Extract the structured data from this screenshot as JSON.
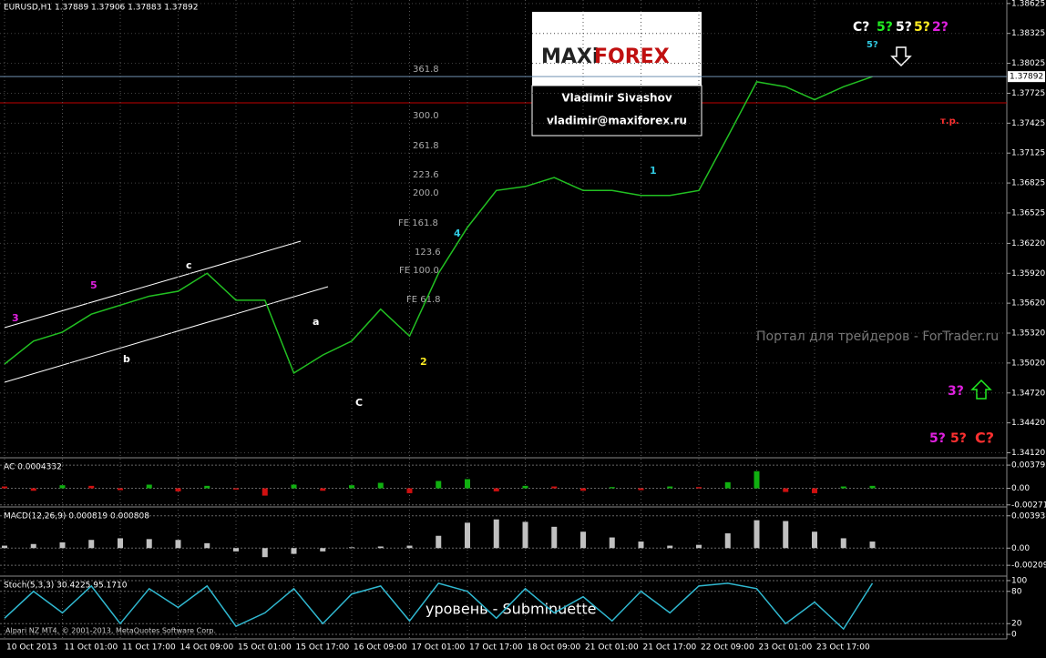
{
  "chart_data": [
    {
      "type": "line",
      "title": "EURUSD,H1  1.37889 1.37906 1.37883 1.37892",
      "color": "#22c022",
      "categories": [
        "10 Oct 2013",
        null,
        "11 Oct 01:00",
        null,
        "11 Oct 17:00",
        null,
        "14 Oct 09:00",
        null,
        "15 Oct 01:00",
        null,
        "15 Oct 17:00",
        null,
        "16 Oct 09:00",
        null,
        "17 Oct 01:00",
        null,
        "17 Oct 17:00",
        null,
        "18 Oct 09:00",
        null,
        "21 Oct 01:00",
        null,
        "21 Oct 17:00",
        null,
        "22 Oct 09:00",
        null,
        "23 Oct 01:00",
        null,
        "23 Oct 17:00",
        null,
        null
      ],
      "values": [
        1.3501,
        1.3524,
        1.3533,
        1.3551,
        1.356,
        1.3569,
        1.3574,
        1.3592,
        1.3565,
        1.3565,
        1.3492,
        1.351,
        1.3524,
        1.3556,
        1.3529,
        1.3592,
        1.3638,
        1.3675,
        1.3679,
        1.3688,
        1.3675,
        1.3675,
        1.367,
        1.367,
        1.3675,
        1.3729,
        1.3784,
        1.3779,
        1.3766,
        1.3779,
        1.37892
      ],
      "ylim": [
        1.3407,
        1.3866
      ],
      "yticks": [
        1.38625,
        1.38325,
        1.38025,
        1.37725,
        1.37425,
        1.37125,
        1.36825,
        1.36525,
        {
          "value": 1.3622,
          "label": "1.36220"
        },
        {
          "value": 1.3592,
          "label": "1.35920"
        },
        {
          "value": 1.3562,
          "label": "1.35620"
        },
        {
          "value": 1.3532,
          "label": "1.35320"
        },
        {
          "value": 1.3502,
          "label": "1.35020"
        },
        {
          "value": 1.3472,
          "label": "1.34720"
        },
        {
          "value": 1.3442,
          "label": "1.34420"
        },
        {
          "value": 1.3412,
          "label": "1.34120"
        }
      ],
      "grid": true
    },
    {
      "type": "bar",
      "title": "AC 0.0004332",
      "color": "#d01010",
      "up_color": "#10b010",
      "values": [
        0.0003,
        -0.0004,
        0.0005,
        0.0004,
        -0.0003,
        0.0006,
        -0.0005,
        0.0004,
        -0.0002,
        -0.0012,
        0.0006,
        -0.0004,
        0.0005,
        0.0009,
        -0.0008,
        0.0012,
        0.0015,
        -0.0005,
        0.0004,
        0.0003,
        -0.0004,
        0.0002,
        -0.0003,
        0.0003,
        0.0002,
        0.001,
        0.0028,
        -0.0006,
        -0.0008,
        0.0003,
        0.0004
      ],
      "ylim": [
        -0.0029,
        0.0047
      ],
      "yticks": [
        0.003795,
        {
          "value": 0,
          "label": "0.00"
        },
        -0.002717
      ]
    },
    {
      "type": "bar",
      "title": "MACD(12,26,9) 0.000819 0.000808",
      "color": "#c0c0c0",
      "values": [
        0.0003,
        0.0005,
        0.0007,
        0.001,
        0.0012,
        0.0011,
        0.001,
        0.0006,
        -0.0004,
        -0.0011,
        -0.0007,
        -0.0004,
        0.0001,
        0.0002,
        0.0003,
        0.0015,
        0.0031,
        0.0035,
        0.0032,
        0.0026,
        0.002,
        0.0013,
        0.0008,
        0.0003,
        0.0004,
        0.0018,
        0.0034,
        0.0033,
        0.002,
        0.0012,
        0.0008
      ],
      "ylim": [
        -0.0033,
        0.0048
      ],
      "yticks": [
        0.003938,
        {
          "value": 0,
          "label": "0.00"
        },
        -0.002095
      ]
    },
    {
      "type": "line",
      "title": "Stoch(5,3,3) 30.4225 95.1710",
      "color": "#30b8d0",
      "values": [
        30,
        80,
        40,
        90,
        20,
        85,
        50,
        90,
        15,
        40,
        85,
        20,
        75,
        90,
        25,
        95,
        80,
        30,
        85,
        40,
        70,
        25,
        80,
        40,
        90,
        95,
        85,
        20,
        60,
        10,
        95
      ],
      "ylim": [
        -5,
        105
      ],
      "yticks": [
        100,
        80,
        20,
        0
      ]
    }
  ],
  "annotations": [
    "C?",
    "5?",
    "5?",
    "5?",
    "2?",
    "5?",
    "3?",
    "5?",
    "5?",
    "C?",
    "т.р.",
    "Портал для трейдеров - ForTrader.ru",
    "уровень - Subminuette",
    "Alpari NZ MT4, © 2001-2013, MetaQuotes Software Corp.",
    "361.8",
    "300.0",
    "261.8",
    "223.6",
    "200.0",
    "FE 161.8",
    "123.6",
    "FE 100.0",
    "FE 61.8",
    "3",
    "5",
    "4",
    "2",
    "1",
    "C",
    "a",
    "b",
    "c"
  ],
  "logo": {
    "brand_left": "MAXi",
    "brand_right": "FOREX",
    "name": "Vladimir Sivashov",
    "email": "vladimir@maxiforex.ru"
  }
}
